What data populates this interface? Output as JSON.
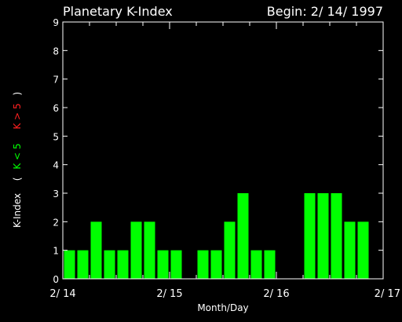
{
  "chart_data": {
    "type": "bar",
    "title": "Planetary K-Index",
    "begin_label": "Begin: 2/ 14/ 1997",
    "xlabel": "Month/Day",
    "ylabel": {
      "prefix": "K-Index",
      "open": "(",
      "low": "K < 5",
      "high": "K > 5",
      "close": ")"
    },
    "ylim": [
      0,
      9
    ],
    "yticks": [
      "0",
      "1",
      "2",
      "3",
      "4",
      "5",
      "6",
      "7",
      "8",
      "9"
    ],
    "xlim": [
      0,
      24
    ],
    "xticks": [
      {
        "value": 0,
        "label": "2/ 14"
      },
      {
        "value": 8,
        "label": "2/ 15"
      },
      {
        "value": 16,
        "label": "2/ 16"
      },
      {
        "value": 24,
        "label": "2/ 17"
      }
    ],
    "values": [
      1,
      1,
      2,
      1,
      1,
      2,
      2,
      1,
      1,
      0,
      1,
      1,
      2,
      3,
      1,
      1,
      0,
      0,
      3,
      3,
      3,
      2,
      2,
      0
    ],
    "colors": {
      "background": "#000000",
      "bar": "#00ff00",
      "axis": "#ffffff",
      "low": "#00ff00",
      "high": "#ff2020"
    }
  }
}
